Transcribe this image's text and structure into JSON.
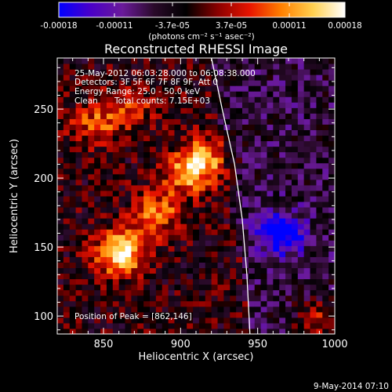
{
  "colorbar": {
    "tick_labels": [
      "-0.00018",
      "-0.00011",
      "-3.7e-05",
      "3.7e-05",
      "0.00011",
      "0.00018"
    ],
    "tick_values": [
      -0.00018,
      -0.00011,
      -3.7e-05,
      3.7e-05,
      0.00011,
      0.00018
    ],
    "range": [
      -0.00018,
      0.00018
    ],
    "unit": "(photons cm⁻² s⁻¹ asec⁻²)",
    "colors": [
      "#0000ff",
      "#4a00c8",
      "#6a1a9a",
      "#2a0a2a",
      "#000000",
      "#8a0000",
      "#e81400",
      "#ff8000",
      "#ffd050",
      "#ffffff"
    ]
  },
  "info": {
    "time_range": "25-May-2012 06:03:28.000 to 06:08:38.000",
    "detectors": "Detectors: 3F 5F 6F 7F 8F 9F, Att 0",
    "energy": "Energy Range: 25.0 - 50.0 keV",
    "clean": "Clean",
    "total_counts": "Total counts: 7.15E+03",
    "peak": "Position of Peak = [862,146]"
  },
  "footer": {
    "date": "9-May-2014 07:10"
  },
  "chart_data": {
    "type": "heatmap",
    "title": "Reconstructed RHESSI Image",
    "xlabel": "Heliocentric X (arcsec)",
    "ylabel": "Heliocentric Y (arcsec)",
    "xlim": [
      820,
      1000
    ],
    "ylim": [
      87,
      287
    ],
    "x_ticks": [
      850,
      900,
      950,
      1000
    ],
    "y_ticks": [
      100,
      150,
      200,
      250
    ],
    "x_tick_labels": [
      "850",
      "900",
      "950",
      "1000"
    ],
    "y_tick_labels": [
      "100",
      "150",
      "200",
      "250"
    ],
    "peak_position": [
      862,
      146
    ],
    "limb_curve": [
      [
        920,
        287
      ],
      [
        927,
        250
      ],
      [
        935,
        210
      ],
      [
        940,
        170
      ],
      [
        943,
        130
      ],
      [
        945,
        87
      ]
    ],
    "emission_features": [
      {
        "x": 862,
        "y": 146,
        "value": 0.00018
      },
      {
        "x": 905,
        "y": 205,
        "value": 0.00012
      },
      {
        "x": 915,
        "y": 215,
        "value": 0.0001
      },
      {
        "x": 885,
        "y": 175,
        "value": 0.00011
      },
      {
        "x": 845,
        "y": 240,
        "value": 9e-05
      },
      {
        "x": 868,
        "y": 252,
        "value": 8e-05
      },
      {
        "x": 990,
        "y": 96,
        "value": 0.0001
      },
      {
        "x": 965,
        "y": 160,
        "value": -0.00017
      }
    ]
  }
}
